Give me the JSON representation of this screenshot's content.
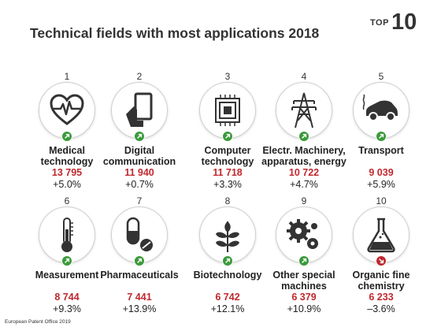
{
  "header": {
    "title": "Technical fields with most applications 2018",
    "badge_top": "TOP",
    "badge_num": "10"
  },
  "footer": {
    "source": "European Patent Office 2019"
  },
  "colors": {
    "count": "#c0282e",
    "up": "#3a9a3a",
    "down": "#c0282e"
  },
  "chart_data": {
    "type": "table",
    "title": "Technical fields with most applications 2018",
    "rows": [
      {
        "rank": "1",
        "field": "Medical technology",
        "applications": "13 795",
        "change": "+5.0%",
        "trend": "up",
        "icon": "heart-ecg-icon"
      },
      {
        "rank": "2",
        "field": "Digital communication",
        "applications": "11 940",
        "change": "+0.7%",
        "trend": "up",
        "icon": "phone-hand-icon"
      },
      {
        "rank": "3",
        "field": "Computer technology",
        "applications": "11 718",
        "change": "+3.3%",
        "trend": "up",
        "icon": "chip-icon"
      },
      {
        "rank": "4",
        "field": "Electr. Machinery, apparatus, energy",
        "applications": "10 722",
        "change": "+4.7%",
        "trend": "up",
        "icon": "power-pylon-icon"
      },
      {
        "rank": "5",
        "field": "Transport",
        "applications": "9 039",
        "change": "+5.9%",
        "trend": "up",
        "icon": "electric-car-icon"
      },
      {
        "rank": "6",
        "field": "Measurement",
        "applications": "8 744",
        "change": "+9.3%",
        "trend": "up",
        "icon": "thermometer-icon"
      },
      {
        "rank": "7",
        "field": "Pharmaceuticals",
        "applications": "7 441",
        "change": "+13.9%",
        "trend": "up",
        "icon": "pill-icon"
      },
      {
        "rank": "8",
        "field": "Biotechnology",
        "applications": "6 742",
        "change": "+12.1%",
        "trend": "up",
        "icon": "leaf-icon"
      },
      {
        "rank": "9",
        "field": "Other special machines",
        "applications": "6 379",
        "change": "+10.9%",
        "trend": "up",
        "icon": "gears-icon"
      },
      {
        "rank": "10",
        "field": "Organic fine chemistry",
        "applications": "6 233",
        "change": "–3.6%",
        "trend": "down",
        "icon": "flask-icon"
      }
    ]
  }
}
